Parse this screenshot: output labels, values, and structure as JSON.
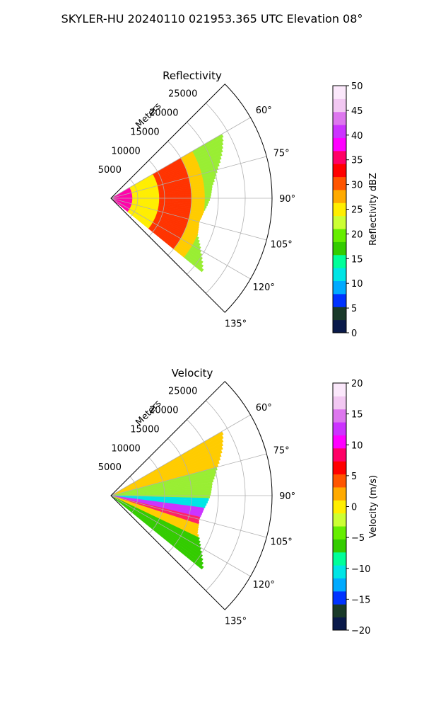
{
  "figure": {
    "title": "SKYLER-HU  20240110  021953.365 UTC Elevation 08°"
  },
  "chart_data": [
    {
      "type": "heatmap",
      "projection": "polar-sector",
      "title": "Reflectivity",
      "r_axis_label": "Meters",
      "r_range": [
        0,
        30000
      ],
      "r_ticks": [
        5000,
        10000,
        15000,
        20000,
        25000
      ],
      "r_tick_labels": [
        "5000",
        "10000",
        "15000",
        "20000",
        "25000"
      ],
      "theta_range_deg": [
        45,
        135
      ],
      "theta_ticks_deg": [
        60,
        75,
        90,
        105,
        120,
        135
      ],
      "theta_tick_labels": [
        "60°",
        "75°",
        "90°",
        "105°",
        "120°",
        "135°"
      ],
      "grid": true,
      "colorbar": {
        "label": "Reflectivity dBZ",
        "range": [
          0,
          50
        ],
        "ticks": [
          "0",
          "5",
          "10",
          "15",
          "20",
          "25",
          "30",
          "35",
          "40",
          "45",
          "50"
        ],
        "colors": [
          "#0a1a4a",
          "#1a3a2a",
          "#0033ff",
          "#00aaff",
          "#00e5e5",
          "#00ff99",
          "#33cc00",
          "#66ee00",
          "#ccff33",
          "#ffee00",
          "#ffaa00",
          "#ff5500",
          "#ff0000",
          "#ff0066",
          "#ff00ff",
          "#cc33ff",
          "#dd77ee",
          "#f2c8f2",
          "#fbe8fb"
        ]
      },
      "echo": {
        "theta_start_deg": 60,
        "theta_end_deg": 129,
        "max_range_m_by_theta": [
          [
            60,
            24000
          ],
          [
            67,
            22500
          ],
          [
            75,
            20500
          ],
          [
            83,
            19000
          ],
          [
            90,
            18500
          ],
          [
            98,
            17500
          ],
          [
            105,
            17000
          ],
          [
            113,
            17500
          ],
          [
            121,
            19500
          ],
          [
            129,
            22000
          ]
        ],
        "range_bands": [
          {
            "r_start": 0,
            "r_end": 4000,
            "color": "#ff00aa"
          },
          {
            "r_start": 4000,
            "r_end": 9000,
            "color": "#ffee00"
          },
          {
            "r_start": 9000,
            "r_end": 15000,
            "color": "#ff3300"
          },
          {
            "r_start": 15000,
            "r_end": 17500,
            "color": "#ffcc00"
          },
          {
            "r_start": 17500,
            "r_end": 30000,
            "color": "#99ee33"
          }
        ]
      }
    },
    {
      "type": "heatmap",
      "projection": "polar-sector",
      "title": "Velocity",
      "r_axis_label": "Meters",
      "r_range": [
        0,
        30000
      ],
      "r_ticks": [
        5000,
        10000,
        15000,
        20000,
        25000
      ],
      "r_tick_labels": [
        "5000",
        "10000",
        "15000",
        "20000",
        "25000"
      ],
      "theta_range_deg": [
        45,
        135
      ],
      "theta_ticks_deg": [
        60,
        75,
        90,
        105,
        120,
        135
      ],
      "theta_tick_labels": [
        "60°",
        "75°",
        "90°",
        "105°",
        "120°",
        "135°"
      ],
      "grid": true,
      "colorbar": {
        "label": "Velocity (m/s)",
        "range": [
          -20,
          20
        ],
        "ticks": [
          "−20",
          "−15",
          "−10",
          "−5",
          "0",
          "5",
          "10",
          "15",
          "20"
        ],
        "colors": [
          "#0a1a4a",
          "#1a3a2a",
          "#0033ff",
          "#00aaff",
          "#00e5e5",
          "#00ff99",
          "#33cc00",
          "#66ee00",
          "#ccff33",
          "#ffee00",
          "#ffaa00",
          "#ff5500",
          "#ff0000",
          "#ff0066",
          "#ff00ff",
          "#cc33ff",
          "#dd77ee",
          "#f2c8f2",
          "#fbe8fb"
        ]
      },
      "echo": {
        "theta_start_deg": 60,
        "theta_end_deg": 129,
        "max_range_m_by_theta": [
          [
            60,
            24000
          ],
          [
            67,
            22500
          ],
          [
            75,
            20500
          ],
          [
            83,
            19000
          ],
          [
            90,
            18500
          ],
          [
            98,
            17500
          ],
          [
            105,
            17000
          ],
          [
            113,
            17500
          ],
          [
            121,
            19500
          ],
          [
            129,
            22000
          ]
        ],
        "angle_bands": [
          {
            "t_start": 60,
            "t_end": 75,
            "color": "#ffcc00"
          },
          {
            "t_start": 75,
            "t_end": 92,
            "color": "#99ee33"
          },
          {
            "t_start": 92,
            "t_end": 97,
            "color": "#00e5e5"
          },
          {
            "t_start": 97,
            "t_end": 103,
            "color": "#cc33ff"
          },
          {
            "t_start": 103,
            "t_end": 108,
            "color": "#ff2266"
          },
          {
            "t_start": 108,
            "t_end": 116,
            "color": "#ffcc00"
          },
          {
            "t_start": 116,
            "t_end": 129,
            "color": "#33cc00"
          }
        ]
      }
    }
  ]
}
